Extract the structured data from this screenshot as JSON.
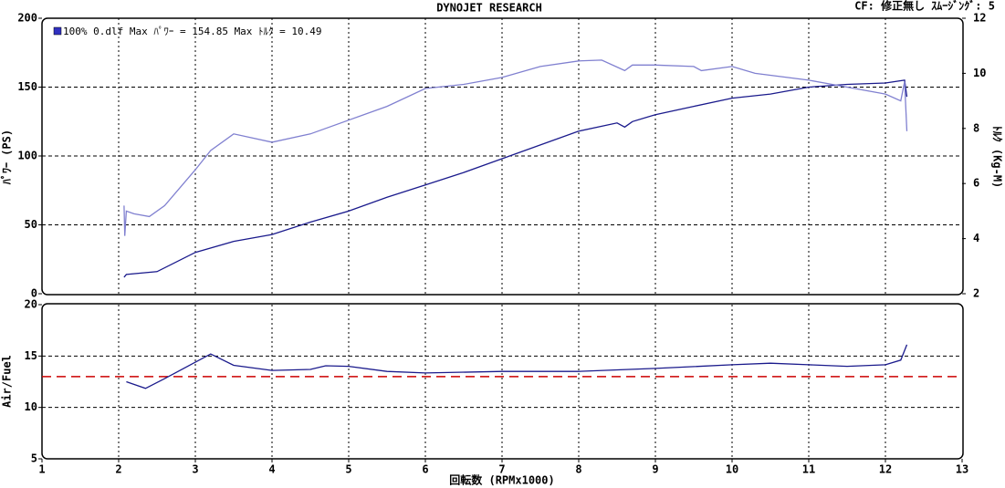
{
  "header": {
    "title": "DYNOJET  RESEARCH",
    "settings": "CF: 修正無し  ｽﾑｰｼﾞﾝｸﾞ: 5"
  },
  "chart_data": [
    {
      "type": "line",
      "legend_text": "100% 0.dlf Max ﾊﾟﾜｰ = 154.85     Max ﾄﾙｸ = 10.49",
      "ylabel": "ﾊﾟﾜｰ (PS)",
      "y2label": "ﾄﾙｸ (Kg-M)",
      "xlim": [
        1,
        13
      ],
      "xticks": [
        2,
        3,
        4,
        5,
        6,
        7,
        8,
        9,
        10,
        11,
        12
      ],
      "ylim": [
        0,
        200
      ],
      "yticks": [
        0,
        50,
        100,
        150,
        200
      ],
      "y2lim": [
        2,
        12
      ],
      "y2ticks": [
        2,
        4,
        6,
        8,
        10,
        12
      ],
      "grid": true,
      "series": [
        {
          "color": "#1a1a8c",
          "x": [
            2.07,
            2.1,
            2.5,
            3,
            3.5,
            4,
            4.5,
            5,
            5.5,
            6,
            6.5,
            7,
            7.5,
            8,
            8.5,
            8.6,
            8.7,
            9,
            9.5,
            10,
            10.5,
            11,
            11.5,
            12,
            12.25,
            12.28
          ],
          "values": [
            12,
            14,
            16,
            30,
            38,
            43,
            52,
            60,
            70,
            79,
            88,
            98,
            108,
            118,
            124,
            121,
            125,
            130,
            136,
            142,
            145,
            150,
            152,
            153,
            155,
            143
          ]
        },
        {
          "color": "#8080d0",
          "axis": "y2",
          "x": [
            2.07,
            2.08,
            2.1,
            2.2,
            2.4,
            2.6,
            3,
            3.2,
            3.5,
            4,
            4.5,
            5,
            5.5,
            6,
            6.5,
            7,
            7.5,
            8,
            8.3,
            8.6,
            8.7,
            9,
            9.5,
            9.6,
            10,
            10.3,
            11,
            11.5,
            12,
            12.2,
            12.25,
            12.28
          ],
          "values": [
            5.2,
            4.1,
            5.0,
            4.9,
            4.8,
            5.2,
            6.5,
            7.2,
            7.8,
            7.5,
            7.8,
            8.3,
            8.8,
            9.45,
            9.6,
            9.85,
            10.25,
            10.45,
            10.48,
            10.1,
            10.3,
            10.3,
            10.25,
            10.1,
            10.25,
            10.0,
            9.75,
            9.5,
            9.25,
            9.0,
            9.7,
            7.9
          ]
        }
      ]
    },
    {
      "type": "line",
      "ylabel": "Air/Fuel",
      "xlabel": "回転数 (RPMx1000)",
      "xlim": [
        1,
        13
      ],
      "xticks": [
        1,
        2,
        3,
        4,
        5,
        6,
        7,
        8,
        9,
        10,
        11,
        12,
        13
      ],
      "ylim": [
        5,
        20
      ],
      "yticks": [
        5,
        10,
        15,
        20
      ],
      "grid": true,
      "reference_line": {
        "value": 13,
        "color": "#cc0000"
      },
      "series": [
        {
          "color": "#1a1a8c",
          "x": [
            2.1,
            2.35,
            2.6,
            2.9,
            3.2,
            3.5,
            4,
            4.5,
            4.7,
            5,
            5.5,
            6,
            7,
            8,
            9,
            10,
            10.5,
            11,
            11.5,
            12,
            12.2,
            12.28
          ],
          "values": [
            12.5,
            11.85,
            12.8,
            14.0,
            15.2,
            14.1,
            13.6,
            13.7,
            14.05,
            14.0,
            13.5,
            13.35,
            13.5,
            13.5,
            13.8,
            14.15,
            14.3,
            14.15,
            14.0,
            14.15,
            14.6,
            16.1
          ]
        }
      ]
    }
  ]
}
